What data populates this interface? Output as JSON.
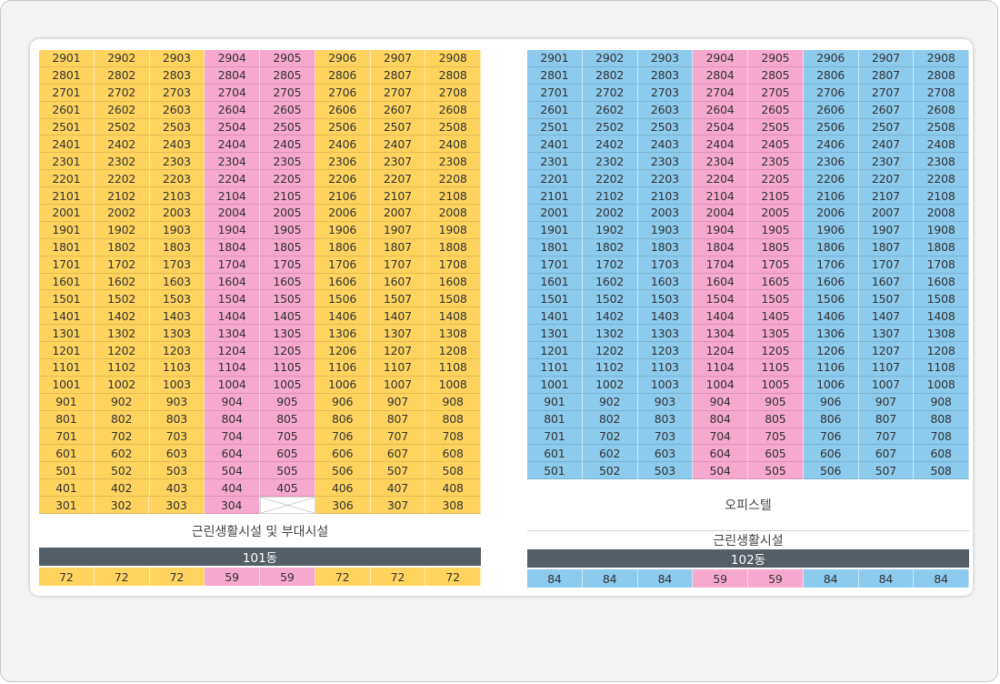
{
  "colors": {
    "type_a": "#ffd45e",
    "type_b": "#f7a8cf",
    "type_c": "#8ccbee",
    "dong_bar": "#545e66"
  },
  "building_101": {
    "rows": [
      [
        "2901",
        "2902",
        "2903",
        "2904",
        "2905",
        "2906",
        "2907",
        "2908"
      ],
      [
        "2801",
        "2802",
        "2803",
        "2804",
        "2805",
        "2806",
        "2807",
        "2808"
      ],
      [
        "2701",
        "2702",
        "2703",
        "2704",
        "2705",
        "2706",
        "2707",
        "2708"
      ],
      [
        "2601",
        "2602",
        "2603",
        "2604",
        "2605",
        "2606",
        "2607",
        "2608"
      ],
      [
        "2501",
        "2502",
        "2503",
        "2504",
        "2505",
        "2506",
        "2507",
        "2508"
      ],
      [
        "2401",
        "2402",
        "2403",
        "2404",
        "2405",
        "2406",
        "2407",
        "2408"
      ],
      [
        "2301",
        "2302",
        "2303",
        "2304",
        "2305",
        "2306",
        "2307",
        "2308"
      ],
      [
        "2201",
        "2202",
        "2203",
        "2204",
        "2205",
        "2206",
        "2207",
        "2208"
      ],
      [
        "2101",
        "2102",
        "2103",
        "2104",
        "2105",
        "2106",
        "2107",
        "2108"
      ],
      [
        "2001",
        "2002",
        "2003",
        "2004",
        "2005",
        "2006",
        "2007",
        "2008"
      ],
      [
        "1901",
        "1902",
        "1903",
        "1904",
        "1905",
        "1906",
        "1907",
        "1908"
      ],
      [
        "1801",
        "1802",
        "1803",
        "1804",
        "1805",
        "1806",
        "1807",
        "1808"
      ],
      [
        "1701",
        "1702",
        "1703",
        "1704",
        "1705",
        "1706",
        "1707",
        "1708"
      ],
      [
        "1601",
        "1602",
        "1603",
        "1604",
        "1605",
        "1606",
        "1607",
        "1608"
      ],
      [
        "1501",
        "1502",
        "1503",
        "1504",
        "1505",
        "1506",
        "1507",
        "1508"
      ],
      [
        "1401",
        "1402",
        "1403",
        "1404",
        "1405",
        "1406",
        "1407",
        "1408"
      ],
      [
        "1301",
        "1302",
        "1303",
        "1304",
        "1305",
        "1306",
        "1307",
        "1308"
      ],
      [
        "1201",
        "1202",
        "1203",
        "1204",
        "1205",
        "1206",
        "1207",
        "1208"
      ],
      [
        "1101",
        "1102",
        "1103",
        "1104",
        "1105",
        "1106",
        "1107",
        "1108"
      ],
      [
        "1001",
        "1002",
        "1003",
        "1004",
        "1005",
        "1006",
        "1007",
        "1008"
      ],
      [
        "901",
        "902",
        "903",
        "904",
        "905",
        "906",
        "907",
        "908"
      ],
      [
        "801",
        "802",
        "803",
        "804",
        "805",
        "806",
        "807",
        "808"
      ],
      [
        "701",
        "702",
        "703",
        "704",
        "705",
        "706",
        "707",
        "708"
      ],
      [
        "601",
        "602",
        "603",
        "604",
        "605",
        "606",
        "607",
        "608"
      ],
      [
        "501",
        "502",
        "503",
        "504",
        "505",
        "506",
        "507",
        "508"
      ],
      [
        "401",
        "402",
        "403",
        "404",
        "405",
        "406",
        "407",
        "408"
      ],
      [
        "301",
        "302",
        "303",
        "304",
        "",
        "306",
        "307",
        "308"
      ]
    ],
    "facility": "근린생활시설 및 부대시설",
    "dong": "101동",
    "sizes": [
      "72",
      "72",
      "72",
      "59",
      "59",
      "72",
      "72",
      "72"
    ]
  },
  "building_102": {
    "rows": [
      [
        "2901",
        "2902",
        "2903",
        "2904",
        "2905",
        "2906",
        "2907",
        "2908"
      ],
      [
        "2801",
        "2802",
        "2803",
        "2804",
        "2805",
        "2806",
        "2807",
        "2808"
      ],
      [
        "2701",
        "2702",
        "2703",
        "2704",
        "2705",
        "2706",
        "2707",
        "2708"
      ],
      [
        "2601",
        "2602",
        "2603",
        "2604",
        "2605",
        "2606",
        "2607",
        "2608"
      ],
      [
        "2501",
        "2502",
        "2503",
        "2504",
        "2505",
        "2506",
        "2507",
        "2508"
      ],
      [
        "2401",
        "2402",
        "2403",
        "2404",
        "2405",
        "2406",
        "2407",
        "2408"
      ],
      [
        "2301",
        "2302",
        "2303",
        "2304",
        "2305",
        "2306",
        "2307",
        "2308"
      ],
      [
        "2201",
        "2202",
        "2203",
        "2204",
        "2205",
        "2206",
        "2207",
        "2208"
      ],
      [
        "2101",
        "2102",
        "2103",
        "2104",
        "2105",
        "2106",
        "2107",
        "2108"
      ],
      [
        "2001",
        "2002",
        "2003",
        "2004",
        "2005",
        "2006",
        "2007",
        "2008"
      ],
      [
        "1901",
        "1902",
        "1903",
        "1904",
        "1905",
        "1906",
        "1907",
        "1908"
      ],
      [
        "1801",
        "1802",
        "1803",
        "1804",
        "1805",
        "1806",
        "1807",
        "1808"
      ],
      [
        "1701",
        "1702",
        "1703",
        "1704",
        "1705",
        "1706",
        "1707",
        "1708"
      ],
      [
        "1601",
        "1602",
        "1603",
        "1604",
        "1605",
        "1606",
        "1607",
        "1608"
      ],
      [
        "1501",
        "1502",
        "1503",
        "1504",
        "1505",
        "1506",
        "1507",
        "1508"
      ],
      [
        "1401",
        "1402",
        "1403",
        "1404",
        "1405",
        "1406",
        "1407",
        "1408"
      ],
      [
        "1301",
        "1302",
        "1303",
        "1304",
        "1305",
        "1306",
        "1307",
        "1308"
      ],
      [
        "1201",
        "1202",
        "1203",
        "1204",
        "1205",
        "1206",
        "1207",
        "1208"
      ],
      [
        "1101",
        "1102",
        "1103",
        "1104",
        "1105",
        "1106",
        "1107",
        "1108"
      ],
      [
        "1001",
        "1002",
        "1003",
        "1004",
        "1005",
        "1006",
        "1007",
        "1008"
      ],
      [
        "901",
        "902",
        "903",
        "904",
        "905",
        "906",
        "907",
        "908"
      ],
      [
        "801",
        "802",
        "803",
        "804",
        "805",
        "806",
        "807",
        "808"
      ],
      [
        "701",
        "702",
        "703",
        "704",
        "705",
        "706",
        "707",
        "708"
      ],
      [
        "601",
        "602",
        "603",
        "604",
        "605",
        "606",
        "607",
        "608"
      ],
      [
        "501",
        "502",
        "503",
        "504",
        "505",
        "506",
        "507",
        "508"
      ]
    ],
    "officetel": "오피스텔",
    "facility": "근린생활시설",
    "dong": "102동",
    "sizes": [
      "84",
      "84",
      "84",
      "59",
      "59",
      "84",
      "84",
      "84"
    ]
  }
}
